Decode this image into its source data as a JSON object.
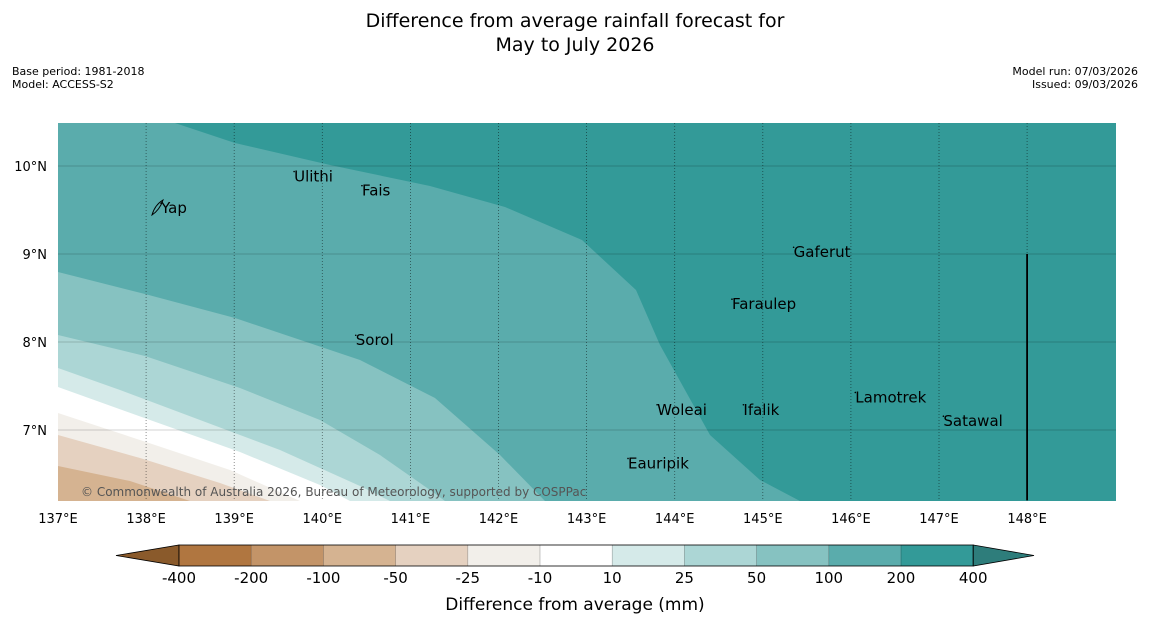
{
  "title_line1": "Difference from average rainfall forecast for",
  "title_line2": "May to July 2026",
  "meta_left": {
    "base_period": "Base period: 1981-2018",
    "model": "Model: ACCESS-S2"
  },
  "meta_right": {
    "model_run": "Model run: 07/03/2026",
    "issued": "Issued: 09/03/2026"
  },
  "map": {
    "lon_range": [
      137,
      149
    ],
    "lat_range": [
      6.2,
      10.5
    ],
    "lon_ticks": [
      {
        "value": 137,
        "label": "137°E"
      },
      {
        "value": 138,
        "label": "138°E"
      },
      {
        "value": 139,
        "label": "139°E"
      },
      {
        "value": 140,
        "label": "140°E"
      },
      {
        "value": 141,
        "label": "141°E"
      },
      {
        "value": 142,
        "label": "142°E"
      },
      {
        "value": 143,
        "label": "143°E"
      },
      {
        "value": 144,
        "label": "144°E"
      },
      {
        "value": 145,
        "label": "145°E"
      },
      {
        "value": 146,
        "label": "146°E"
      },
      {
        "value": 147,
        "label": "147°E"
      },
      {
        "value": 148,
        "label": "148°E"
      }
    ],
    "lat_ticks": [
      {
        "value": 10,
        "label": "10°N"
      },
      {
        "value": 9,
        "label": "9°N"
      },
      {
        "value": 8,
        "label": "8°N"
      },
      {
        "value": 7,
        "label": "7°N"
      }
    ],
    "places": [
      {
        "name": "Yap",
        "lon": 138.17,
        "lat": 9.52
      },
      {
        "name": "Ulithi",
        "lon": 139.68,
        "lat": 9.88
      },
      {
        "name": "Fais",
        "lon": 140.45,
        "lat": 9.72
      },
      {
        "name": "Gaferut",
        "lon": 145.35,
        "lat": 9.02
      },
      {
        "name": "Faraulep",
        "lon": 144.65,
        "lat": 8.43
      },
      {
        "name": "Sorol",
        "lon": 140.38,
        "lat": 8.02
      },
      {
        "name": "Woleai",
        "lon": 143.8,
        "lat": 7.23
      },
      {
        "name": "Ifalik",
        "lon": 144.78,
        "lat": 7.23
      },
      {
        "name": "Lamotrek",
        "lon": 146.05,
        "lat": 7.37
      },
      {
        "name": "Satawal",
        "lon": 147.05,
        "lat": 7.1
      },
      {
        "name": "Eauripik",
        "lon": 143.47,
        "lat": 6.62
      }
    ],
    "boundary_line": {
      "lon": 148,
      "lat_from": 6.2,
      "lat_to": 9.0
    },
    "copyright": "© Commonwealth of Australia 2026, Bureau of Meteorology, supported by COSPPac"
  },
  "colorbar": {
    "label": "Difference from average (mm)",
    "tick_labels": [
      "-400",
      "-200",
      "-100",
      "-50",
      "-25",
      "-10",
      "10",
      "25",
      "50",
      "100",
      "200",
      "400"
    ],
    "colors": [
      "#b07640",
      "#c39468",
      "#d5b391",
      "#e5d1c0",
      "#f2efea",
      "#ffffff",
      "#d5eae9",
      "#acd6d5",
      "#86c2c1",
      "#5aacac",
      "#339a98"
    ],
    "extend_low_color": "#8a5a2b",
    "extend_high_color": "#2e7d7b"
  }
}
